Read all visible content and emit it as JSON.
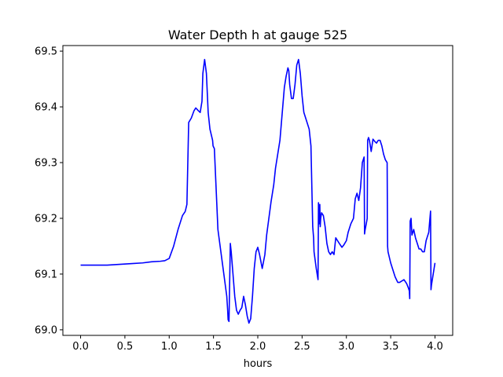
{
  "chart_data": {
    "type": "line",
    "title": "Water Depth h at gauge 525",
    "xlabel": "hours",
    "ylabel": "",
    "xlim": [
      -0.2,
      4.2
    ],
    "ylim": [
      68.99,
      69.51
    ],
    "xticks": [
      0.0,
      0.5,
      1.0,
      1.5,
      2.0,
      2.5,
      3.0,
      3.5,
      4.0
    ],
    "xtick_labels": [
      "0.0",
      "0.5",
      "1.0",
      "1.5",
      "2.0",
      "2.5",
      "3.0",
      "3.5",
      "4.0"
    ],
    "yticks": [
      69.0,
      69.1,
      69.2,
      69.3,
      69.4,
      69.5
    ],
    "ytick_labels": [
      "69.0",
      "69.1",
      "69.2",
      "69.3",
      "69.4",
      "69.5"
    ],
    "grid": false,
    "legend": null,
    "series": [
      {
        "color": "#0000ff",
        "x": [
          0.0,
          0.3,
          0.6,
          0.7,
          0.8,
          0.9,
          0.95,
          1.0,
          1.05,
          1.1,
          1.15,
          1.18,
          1.185,
          1.2,
          1.22,
          1.25,
          1.28,
          1.3,
          1.33,
          1.35,
          1.37,
          1.38,
          1.4,
          1.42,
          1.44,
          1.46,
          1.49,
          1.495,
          1.51,
          1.55,
          1.6,
          1.65,
          1.66,
          1.665,
          1.675,
          1.69,
          1.7,
          1.72,
          1.74,
          1.76,
          1.78,
          1.8,
          1.82,
          1.84,
          1.86,
          1.88,
          1.9,
          1.92,
          1.94,
          1.96,
          1.98,
          2.0,
          2.02,
          2.05,
          2.08,
          2.1,
          2.15,
          2.18,
          2.2,
          2.25,
          2.3,
          2.32,
          2.34,
          2.35,
          2.36,
          2.38,
          2.4,
          2.42,
          2.44,
          2.46,
          2.48,
          2.5,
          2.52,
          2.55,
          2.58,
          2.6,
          2.62,
          2.63,
          2.635,
          2.66,
          2.68,
          2.685,
          2.69,
          2.7,
          2.705,
          2.71,
          2.72,
          2.74,
          2.76,
          2.78,
          2.8,
          2.82,
          2.84,
          2.86,
          2.88,
          2.9,
          2.92,
          2.95,
          2.97,
          3.0,
          3.02,
          3.05,
          3.08,
          3.1,
          3.12,
          3.14,
          3.16,
          3.18,
          3.2,
          3.205,
          3.21,
          3.23,
          3.235,
          3.24,
          3.25,
          3.26,
          3.28,
          3.3,
          3.32,
          3.34,
          3.36,
          3.38,
          3.4,
          3.42,
          3.44,
          3.46,
          3.465,
          3.47,
          3.5,
          3.55,
          3.58,
          3.6,
          3.65,
          3.68,
          3.7,
          3.71,
          3.715,
          3.72,
          3.73,
          3.74,
          3.76,
          3.78,
          3.8,
          3.82,
          3.84,
          3.86,
          3.88,
          3.9,
          3.93,
          3.95,
          3.955,
          3.96,
          4.0
        ],
        "y": [
          69.116,
          69.116,
          69.119,
          69.12,
          69.122,
          69.123,
          69.124,
          69.128,
          69.15,
          69.18,
          69.205,
          69.212,
          69.215,
          69.225,
          69.372,
          69.38,
          69.393,
          69.398,
          69.393,
          69.39,
          69.41,
          69.46,
          69.485,
          69.46,
          69.39,
          69.36,
          69.34,
          69.33,
          69.325,
          69.18,
          69.12,
          69.06,
          69.035,
          69.018,
          69.015,
          69.155,
          69.14,
          69.1,
          69.06,
          69.035,
          69.028,
          69.035,
          69.04,
          69.06,
          69.045,
          69.025,
          69.012,
          69.02,
          69.06,
          69.11,
          69.14,
          69.148,
          69.135,
          69.11,
          69.135,
          69.17,
          69.23,
          69.26,
          69.29,
          69.34,
          69.435,
          69.455,
          69.47,
          69.465,
          69.44,
          69.415,
          69.415,
          69.44,
          69.475,
          69.485,
          69.46,
          69.42,
          69.39,
          69.375,
          69.36,
          69.33,
          69.185,
          69.165,
          69.14,
          69.11,
          69.09,
          69.228,
          69.19,
          69.225,
          69.185,
          69.2,
          69.21,
          69.205,
          69.185,
          69.155,
          69.14,
          69.135,
          69.14,
          69.135,
          69.165,
          69.16,
          69.155,
          69.148,
          69.152,
          69.16,
          69.175,
          69.19,
          69.2,
          69.235,
          69.245,
          69.232,
          69.255,
          69.3,
          69.31,
          69.172,
          69.178,
          69.195,
          69.2,
          69.34,
          69.345,
          69.34,
          69.32,
          69.342,
          69.338,
          69.335,
          69.34,
          69.34,
          69.33,
          69.315,
          69.305,
          69.3,
          69.15,
          69.14,
          69.12,
          69.095,
          69.085,
          69.085,
          69.09,
          69.083,
          69.075,
          69.07,
          69.056,
          69.195,
          69.2,
          69.17,
          69.18,
          69.165,
          69.155,
          69.145,
          69.145,
          69.14,
          69.14,
          69.16,
          69.175,
          69.213,
          69.072,
          69.08,
          69.12
        ]
      }
    ]
  }
}
